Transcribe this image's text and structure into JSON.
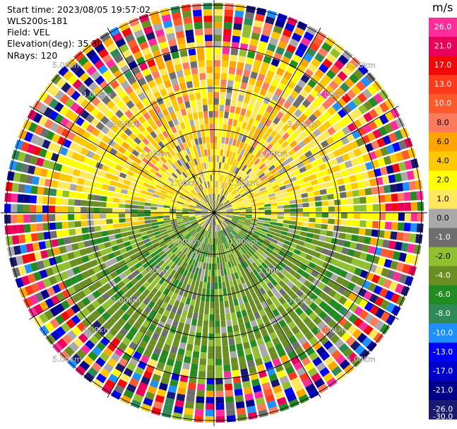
{
  "info": {
    "start_time": "Start time: 2023/08/05 19:57:02",
    "instrument": "WLS200s-181",
    "field": "Field: VEL",
    "elevation": "Elevation(deg): 35.30",
    "nrays": "NRays: 120"
  },
  "colorbar": {
    "title": "m/s",
    "ticks": [
      "26.0",
      "21.0",
      "17.0",
      "13.0",
      "10.0",
      "8.0",
      "6.0",
      "4.0",
      "2.0",
      "1.0",
      "0.0",
      "-1.0",
      "-2.0",
      "-4.0",
      "-6.0",
      "-8.0",
      "-10.0",
      "-13.0",
      "-17.0",
      "-21.0",
      "-26.0",
      "-30.0"
    ],
    "colors": [
      "#ff2d9c",
      "#e8005a",
      "#f10808",
      "#ff3a1a",
      "#ff5a2c",
      "#fc7b5c",
      "#ffa500",
      "#ffc800",
      "#ffff00",
      "#ffe85c",
      "#a9a9a9",
      "#6e6e6e",
      "#90c030",
      "#6b8e23",
      "#228b22",
      "#2e8b57",
      "#1e90ff",
      "#0000ff",
      "#0000cd",
      "#00008b",
      "#191970"
    ]
  },
  "chart_data": {
    "type": "ppi",
    "title": "",
    "field": "VEL",
    "units": "m/s",
    "nrays": 120,
    "elevation_deg": 35.3,
    "range_rings_km": [
      1.0,
      2.0,
      3.0,
      4.0,
      5.0
    ],
    "ring_labels": [
      "1.00km",
      "2.00km",
      "3.00km",
      "4.00km",
      "5.00km"
    ],
    "vmin": -30.0,
    "vmax": 26.0,
    "pattern_description_values": {
      "inner_north_sector_m_s": [
        2.0,
        6.0
      ],
      "inner_south_sector_m_s": [
        -6.0,
        -1.0
      ]
    }
  }
}
